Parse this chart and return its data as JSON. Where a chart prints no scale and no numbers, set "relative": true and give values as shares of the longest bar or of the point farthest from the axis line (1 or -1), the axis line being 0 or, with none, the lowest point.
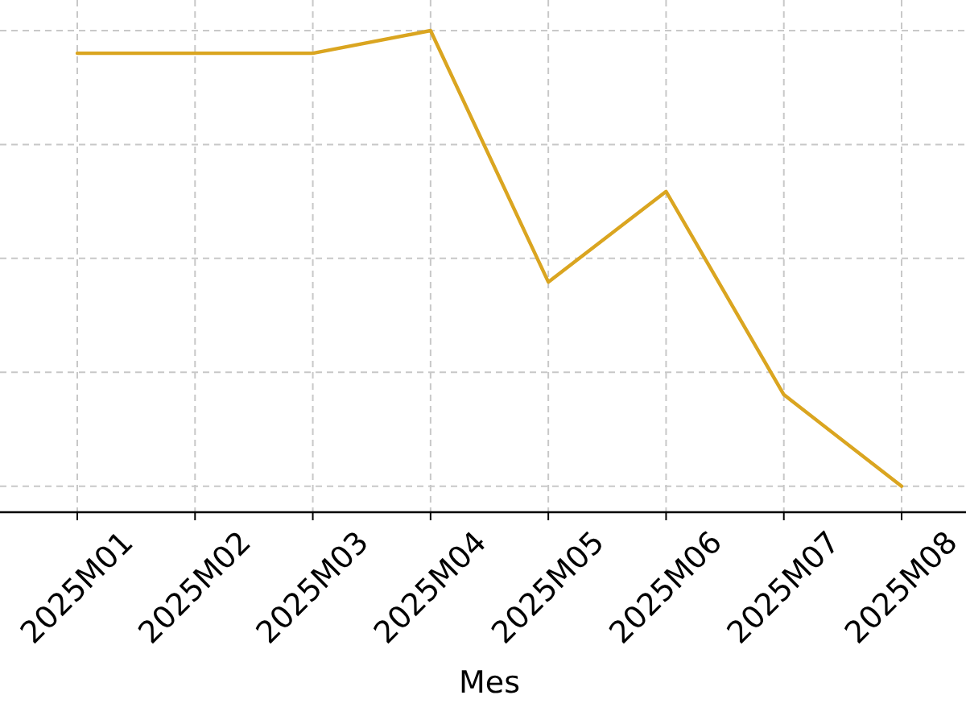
{
  "chart_data": {
    "type": "line",
    "relative": true,
    "categories": [
      "2025M01",
      "2025M02",
      "2025M03",
      "2025M04",
      "2025M05",
      "2025M06",
      "2025M07",
      "2025M08"
    ],
    "values": [
      0.953,
      0.953,
      0.953,
      1,
      0.478,
      0.666,
      0.244,
      0.054
    ],
    "color": "#daa520",
    "line_style": "solid",
    "xlabel": "Mes",
    "grid": true
  }
}
